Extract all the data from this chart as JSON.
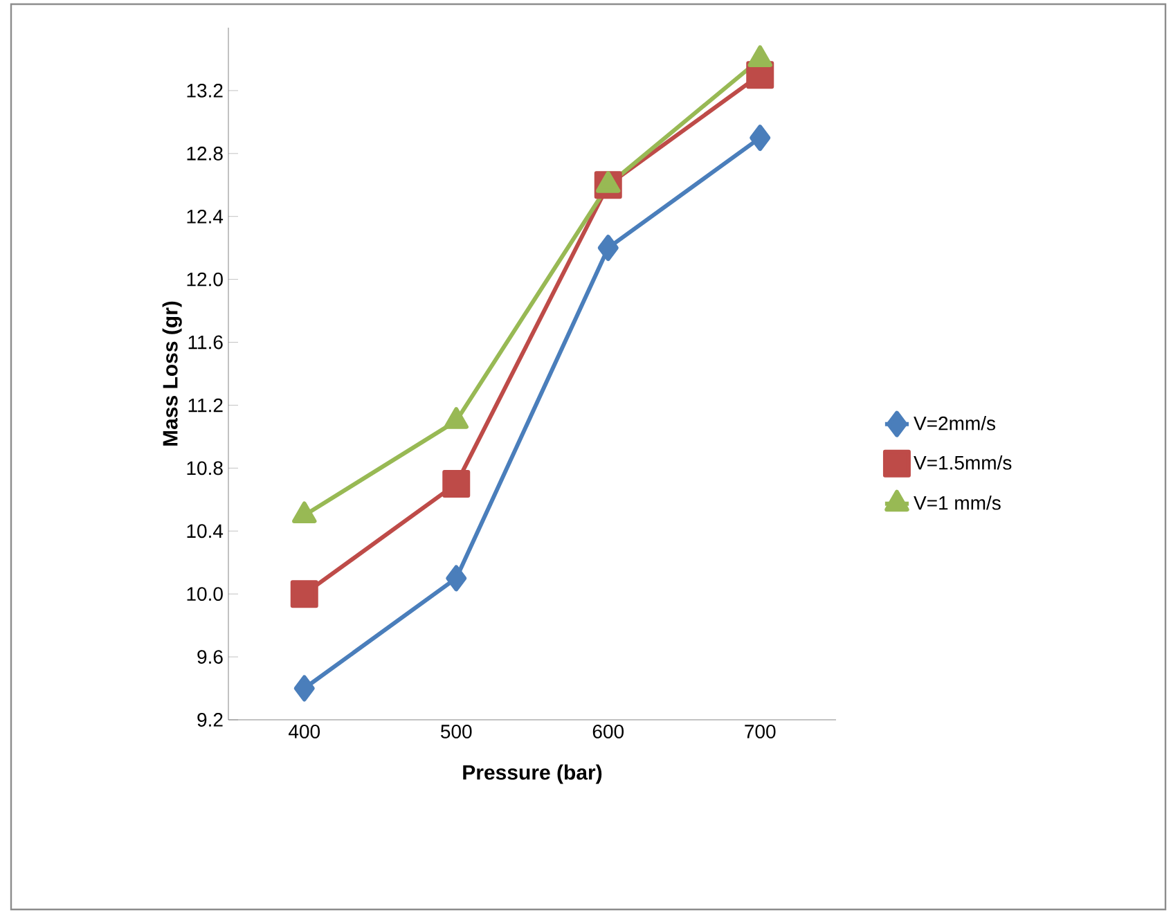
{
  "chart_data": {
    "type": "line",
    "xlabel": "Pressure (bar)",
    "ylabel": "Mass Loss (gr)",
    "categories": [
      "400",
      "500",
      "600",
      "700"
    ],
    "ylim": [
      9.2,
      13.6
    ],
    "yticks": [
      9.2,
      9.6,
      {
        "value": 10,
        "label": "10.0"
      },
      10.4,
      10.8,
      11.2,
      11.6,
      {
        "value": 12,
        "label": "12.0"
      },
      12.4,
      12.8,
      13.2
    ],
    "grid": false,
    "legend": "right",
    "line_style": "solid",
    "series": [
      {
        "name": "V=2mm/s",
        "color": "#4a7ebb",
        "marker": "diamond",
        "values": [
          9.4,
          10.1,
          12.2,
          12.9
        ]
      },
      {
        "name": "V=1.5mm/s",
        "color": "#be4b48",
        "marker": "square",
        "values": [
          10.0,
          10.7,
          12.6,
          13.3
        ]
      },
      {
        "name": "V=1 mm/s",
        "color": "#98b954",
        "marker": "triangle",
        "values": [
          10.5,
          11.1,
          12.6,
          13.4
        ]
      }
    ]
  }
}
